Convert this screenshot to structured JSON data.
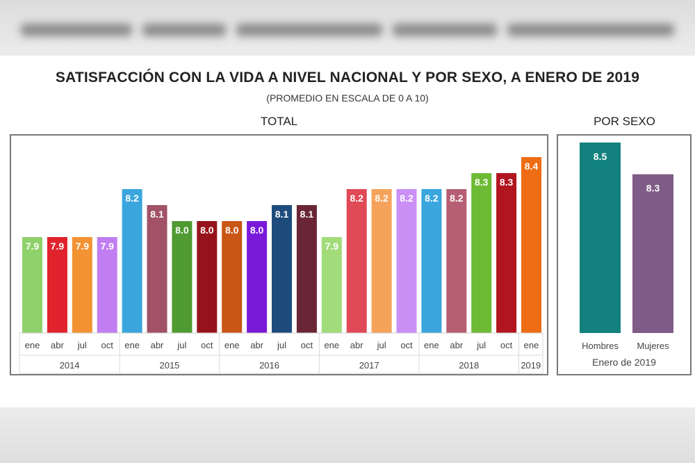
{
  "title": "Satisfacción con la vida a nivel nacional y por sexo, a enero de 2019",
  "title_display": "SATISFACCIÓN CON LA VIDA A NIVEL NACIONAL Y POR SEXO, A ENERO DE 2019",
  "subtitle": "(PROMEDIO EN ESCALA DE 0 A 10)",
  "chart_data": [
    {
      "type": "bar",
      "panel_title": "TOTAL",
      "categories": [
        "ene",
        "abr",
        "jul",
        "oct",
        "ene",
        "abr",
        "jul",
        "oct",
        "ene",
        "abr",
        "jul",
        "oct",
        "ene",
        "abr",
        "jul",
        "oct",
        "ene",
        "abr",
        "jul",
        "oct",
        "ene"
      ],
      "years": [
        "2014",
        "2015",
        "2016",
        "2017",
        "2018",
        "2019"
      ],
      "year_spans": [
        4,
        4,
        4,
        4,
        4,
        1
      ],
      "values": [
        7.9,
        7.9,
        7.9,
        7.9,
        8.2,
        8.1,
        8.0,
        8.0,
        8.0,
        8.0,
        8.1,
        8.1,
        7.9,
        8.2,
        8.2,
        8.2,
        8.2,
        8.2,
        8.3,
        8.3,
        8.4
      ],
      "value_labels": [
        "7.9",
        "7.9",
        "7.9",
        "7.9",
        "8.2",
        "8.1",
        "8.0",
        "8.0",
        "8.0",
        "8.0",
        "8.1",
        "8.1",
        "7.9",
        "8.2",
        "8.2",
        "8.2",
        "8.2",
        "8.2",
        "8.3",
        "8.3",
        "8.4"
      ],
      "colors": [
        "#8fd16a",
        "#e0232c",
        "#f39233",
        "#c07ef0",
        "#3aa6dd",
        "#a15266",
        "#4f9a31",
        "#97131c",
        "#c95615",
        "#7a1ad9",
        "#1d4c7c",
        "#6a2634",
        "#a2dc7a",
        "#e04956",
        "#f5a35a",
        "#c98ff5",
        "#3aa6dd",
        "#b65e72",
        "#6dbb35",
        "#b1151f",
        "#ee6c14"
      ],
      "ylim": [
        7.0,
        8.5
      ],
      "grid": false,
      "legend": "none"
    },
    {
      "type": "bar",
      "panel_title": "POR SEXO",
      "categories": [
        "Hombres",
        "Mujeres"
      ],
      "values": [
        8.5,
        8.3
      ],
      "value_labels": [
        "8.5",
        "8.3"
      ],
      "colors": [
        "#12817d",
        "#7f5c88"
      ],
      "xlabel": "Enero de 2019",
      "ylim": [
        7.0,
        8.5
      ],
      "grid": false,
      "legend": "none"
    }
  ]
}
